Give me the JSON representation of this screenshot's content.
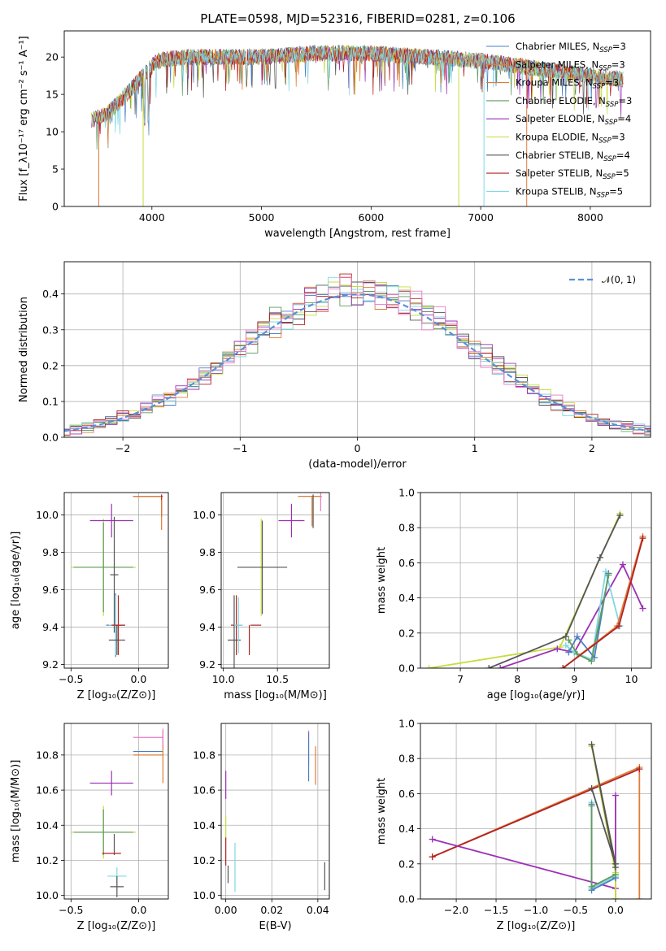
{
  "title": "PLATE=0598, MJD=52316, FIBERID=0281, z=0.106",
  "colors": {
    "c1": "#4c7fc0",
    "c2": "#e07b39",
    "c3": "#5f9b5f",
    "c4": "#9b30b5",
    "c5": "#c8dc3c",
    "c6": "#555555",
    "c7": "#b22222",
    "c8": "#7fd8e0",
    "pink": "#e879c8",
    "norm": "#5b8fd6"
  },
  "chart_data": [
    {
      "id": "spectrum",
      "type": "line",
      "xlabel": "wavelength [Angstrom, rest frame]",
      "ylabel": "Flux [f_λ10^-17 erg cm^-2 s^-1 A^-1]",
      "xlim": [
        3200,
        8550
      ],
      "ylim": [
        0,
        23.5
      ],
      "xticks": [
        "4000",
        "5000",
        "6000",
        "7000",
        "8000"
      ],
      "yticks": [
        "0",
        "5",
        "10",
        "15",
        "20"
      ],
      "legend_position": "top-right",
      "legend": [
        "Chabrier MILES, N_SSP=3",
        "Salpeter MILES, N_SSP=3",
        "Kroupa MILES, N_SSP=3",
        "Chabrier ELODIE, N_SSP=3",
        "Salpeter ELODIE, N_SSP=4",
        "Kroupa ELODIE, N_SSP=3",
        "Chabrier STELIB, N_SSP=4",
        "Salpeter STELIB, N_SSP=5",
        "Kroupa STELIB, N_SSP=5"
      ],
      "continuum": {
        "x": [
          3450,
          3600,
          3800,
          3950,
          4050,
          4300,
          4600,
          5000,
          5500,
          6000,
          6500,
          7000,
          7500,
          8000,
          8300
        ],
        "y": [
          11.5,
          12.5,
          15.5,
          18.0,
          19.5,
          20.0,
          20.0,
          20.0,
          20.5,
          20.5,
          20.0,
          19.5,
          18.5,
          17.5,
          17.0
        ]
      }
    },
    {
      "id": "residuals",
      "type": "histogram",
      "xlabel": "(data-model)/error",
      "ylabel": "Normed distribution",
      "xlim": [
        -2.5,
        2.5
      ],
      "ylim": [
        0,
        0.49
      ],
      "xticks": [
        "−2",
        "−1",
        "0",
        "1",
        "2"
      ],
      "yticks": [
        "0.0",
        "0.1",
        "0.2",
        "0.3",
        "0.4"
      ],
      "grid": true,
      "legend": [
        "𝒩(0, 1)"
      ],
      "legend_position": "top-right",
      "bin_width": 0.1
    },
    {
      "id": "age_vs_Z",
      "type": "scatter",
      "xlabel": "Z [log10(Z/Z⊙)]",
      "ylabel": "age [log10(age/yr)]",
      "xlim": [
        -0.55,
        0.22
      ],
      "ylim": [
        9.18,
        10.12
      ],
      "xticks": [
        "−0.5",
        "0.0"
      ],
      "yticks": [
        "9.2",
        "9.4",
        "9.6",
        "9.8",
        "10.0"
      ],
      "grid": true,
      "points": [
        {
          "x": -0.26,
          "y": 9.72,
          "xerr": 0.24,
          "yerr": 0.26,
          "color": "c5"
        },
        {
          "x": -0.26,
          "y": 9.72,
          "xerr": 0.22,
          "yerr": 0.24,
          "color": "c3"
        },
        {
          "x": -0.2,
          "y": 9.97,
          "xerr": 0.16,
          "yerr": 0.09,
          "color": "c4"
        },
        {
          "x": -0.18,
          "y": 9.68,
          "xerr": 0.03,
          "yerr": 0.31,
          "color": "c6"
        },
        {
          "x": -0.17,
          "y": 9.41,
          "xerr": 0.07,
          "yerr": 0.17,
          "color": "c1"
        },
        {
          "x": -0.17,
          "y": 9.41,
          "xerr": 0.05,
          "yerr": 0.16,
          "color": "c8"
        },
        {
          "x": -0.16,
          "y": 9.33,
          "xerr": 0.06,
          "yerr": 0.08,
          "color": "c6"
        },
        {
          "x": -0.15,
          "y": 9.41,
          "xerr": 0.05,
          "yerr": 0.16,
          "color": "c7"
        },
        {
          "x": 0.07,
          "y": 10.1,
          "xerr": 0.11,
          "yerr": 0.0,
          "color": "c7"
        },
        {
          "x": 0.07,
          "y": 10.1,
          "xerr": 0.11,
          "yerr": 0.0,
          "color": "c2"
        },
        {
          "x": 0.17,
          "y": 10.05,
          "xerr": 0.0,
          "yerr": 0.06,
          "color": "c7"
        },
        {
          "x": 0.17,
          "y": 10.0,
          "xerr": 0.0,
          "yerr": 0.08,
          "color": "c2"
        }
      ]
    },
    {
      "id": "age_vs_mass",
      "type": "scatter",
      "xlabel": "mass [log10(M/M⊙)]",
      "ylabel": "",
      "xlim": [
        9.98,
        10.98
      ],
      "ylim": [
        9.18,
        10.12
      ],
      "xticks": [
        "10.0",
        "10.5"
      ],
      "yticks": [
        "9.2",
        "9.4",
        "9.6",
        "9.8",
        "10.0"
      ],
      "grid": true,
      "points": [
        {
          "x": 10.35,
          "y": 9.72,
          "xerr": 0.0,
          "yerr": 0.26,
          "color": "c5"
        },
        {
          "x": 10.36,
          "y": 9.72,
          "xerr": 0.23,
          "yerr": 0.25,
          "color": "c6"
        },
        {
          "x": 10.12,
          "y": 9.41,
          "xerr": 0.05,
          "yerr": 0.16,
          "color": "c7"
        },
        {
          "x": 10.24,
          "y": 9.33,
          "xerr": 0.0,
          "yerr": 0.08,
          "color": "c7"
        },
        {
          "x": 10.3,
          "y": 9.41,
          "xerr": 0.05,
          "yerr": 0.0,
          "color": "c7"
        },
        {
          "x": 10.1,
          "y": 9.33,
          "xerr": 0.06,
          "yerr": 0.24,
          "color": "c6"
        },
        {
          "x": 10.14,
          "y": 9.41,
          "xerr": 0.04,
          "yerr": 0.15,
          "color": "c8"
        },
        {
          "x": 10.63,
          "y": 9.97,
          "xerr": 0.12,
          "yerr": 0.09,
          "color": "c4"
        },
        {
          "x": 10.8,
          "y": 10.1,
          "xerr": 0.11,
          "yerr": 0.0,
          "color": "c2"
        },
        {
          "x": 10.9,
          "y": 10.1,
          "xerr": 0.0,
          "yerr": 0.08,
          "color": "pink"
        },
        {
          "x": 10.83,
          "y": 10.02,
          "xerr": 0.0,
          "yerr": 0.09,
          "color": "c6"
        },
        {
          "x": 10.82,
          "y": 10.02,
          "xerr": 0.0,
          "yerr": 0.08,
          "color": "c2"
        }
      ]
    },
    {
      "id": "weight_vs_age",
      "type": "line",
      "xlabel": "age [log10(age/yr)]",
      "ylabel": "mass weight",
      "xlim": [
        6.3,
        10.35
      ],
      "ylim": [
        0,
        1
      ],
      "xticks": [
        "7",
        "8",
        "9",
        "10"
      ],
      "yticks": [
        "0.0",
        "0.2",
        "0.4",
        "0.6",
        "0.8",
        "1.0"
      ],
      "grid": true,
      "series": [
        {
          "color": "c5",
          "x": [
            6.45,
            8.75,
            9.8
          ],
          "y": [
            0.0,
            0.12,
            0.88
          ]
        },
        {
          "color": "c6",
          "x": [
            7.5,
            8.85,
            9.45,
            9.8
          ],
          "y": [
            0.0,
            0.18,
            0.63,
            0.87
          ]
        },
        {
          "color": "c4",
          "x": [
            7.7,
            8.7,
            9.0,
            9.85,
            10.2
          ],
          "y": [
            0.0,
            0.11,
            0.09,
            0.59,
            0.34
          ]
        },
        {
          "color": "c8",
          "x": [
            8.85,
            9.0,
            9.3,
            9.55,
            9.8
          ],
          "y": [
            0.13,
            0.09,
            0.05,
            0.55,
            0.24
          ]
        },
        {
          "color": "c1",
          "x": [
            8.9,
            9.05,
            9.35,
            9.6
          ],
          "y": [
            0.09,
            0.18,
            0.06,
            0.54
          ]
        },
        {
          "color": "c3",
          "x": [
            8.9,
            9.05,
            9.3,
            9.6
          ],
          "y": [
            0.16,
            0.08,
            0.04,
            0.53
          ]
        },
        {
          "color": "c2",
          "x": [
            8.8,
            9.75,
            10.2
          ],
          "y": [
            0.0,
            0.24,
            0.75
          ]
        },
        {
          "color": "c7",
          "x": [
            8.8,
            9.78,
            10.2
          ],
          "y": [
            0.0,
            0.24,
            0.74
          ]
        }
      ]
    },
    {
      "id": "mass_vs_Z",
      "type": "scatter",
      "xlabel": "Z [log10(Z/Z⊙)]",
      "ylabel": "mass [log10(M/M⊙)]",
      "xlim": [
        -0.55,
        0.22
      ],
      "ylim": [
        9.98,
        10.98
      ],
      "xticks": [
        "−0.5",
        "0.0"
      ],
      "yticks": [
        "10.0",
        "10.2",
        "10.4",
        "10.6",
        "10.8"
      ],
      "grid": true,
      "points": [
        {
          "x": -0.26,
          "y": 10.36,
          "xerr": 0.24,
          "yerr": 0.15,
          "color": "c5"
        },
        {
          "x": -0.26,
          "y": 10.36,
          "xerr": 0.22,
          "yerr": 0.13,
          "color": "c3"
        },
        {
          "x": -0.2,
          "y": 10.64,
          "xerr": 0.16,
          "yerr": 0.07,
          "color": "c4"
        },
        {
          "x": -0.18,
          "y": 10.29,
          "xerr": 0.0,
          "yerr": 0.06,
          "color": "c6"
        },
        {
          "x": -0.2,
          "y": 10.24,
          "xerr": 0.07,
          "yerr": 0.0,
          "color": "c7"
        },
        {
          "x": -0.16,
          "y": 10.11,
          "xerr": 0.07,
          "yerr": 0.05,
          "color": "c8"
        },
        {
          "x": -0.16,
          "y": 10.05,
          "xerr": 0.05,
          "yerr": 0.06,
          "color": "c6"
        },
        {
          "x": 0.07,
          "y": 10.9,
          "xerr": 0.11,
          "yerr": 0.0,
          "color": "pink"
        },
        {
          "x": 0.07,
          "y": 10.82,
          "xerr": 0.11,
          "yerr": 0.0,
          "color": "c1"
        },
        {
          "x": 0.07,
          "y": 10.8,
          "xerr": 0.11,
          "yerr": 0.0,
          "color": "c2"
        },
        {
          "x": 0.18,
          "y": 10.79,
          "xerr": 0.0,
          "yerr": 0.15,
          "color": "c2"
        },
        {
          "x": 0.18,
          "y": 10.9,
          "xerr": 0.0,
          "yerr": 0.05,
          "color": "pink"
        }
      ]
    },
    {
      "id": "mass_vs_ebv",
      "type": "scatter",
      "xlabel": "E(B-V)",
      "ylabel": "",
      "xlim": [
        -0.002,
        0.045
      ],
      "ylim": [
        9.98,
        10.98
      ],
      "xticks": [
        "0.00",
        "0.02",
        "0.04"
      ],
      "yticks": [
        "10.0",
        "10.2",
        "10.4",
        "10.6",
        "10.8"
      ],
      "grid": true,
      "points": [
        {
          "x": 0.0,
          "y": 10.63,
          "xerr": 0.0,
          "yerr": 0.08,
          "color": "c4"
        },
        {
          "x": 0.0,
          "y": 10.38,
          "xerr": 0.0,
          "yerr": 0.07,
          "color": "c5"
        },
        {
          "x": 0.0,
          "y": 10.25,
          "xerr": 0.0,
          "yerr": 0.08,
          "color": "c7"
        },
        {
          "x": 0.001,
          "y": 10.12,
          "xerr": 0.0,
          "yerr": 0.05,
          "color": "c6"
        },
        {
          "x": 0.004,
          "y": 10.16,
          "xerr": 0.0,
          "yerr": 0.14,
          "color": "c8"
        },
        {
          "x": 0.036,
          "y": 10.84,
          "xerr": 0.0,
          "yerr": 0.1,
          "color": "pink"
        },
        {
          "x": 0.036,
          "y": 10.79,
          "xerr": 0.0,
          "yerr": 0.14,
          "color": "c1"
        },
        {
          "x": 0.039,
          "y": 10.74,
          "xerr": 0.0,
          "yerr": 0.11,
          "color": "c2"
        },
        {
          "x": 0.043,
          "y": 10.11,
          "xerr": 0.0,
          "yerr": 0.08,
          "color": "c6"
        }
      ]
    },
    {
      "id": "weight_vs_Z",
      "type": "line",
      "xlabel": "Z [log10(Z/Z⊙)]",
      "ylabel": "mass weight",
      "xlim": [
        -2.45,
        0.45
      ],
      "ylim": [
        0,
        1
      ],
      "xticks": [
        "−2.0",
        "−1.5",
        "−1.0",
        "−0.5",
        "0.0"
      ],
      "yticks": [
        "0.0",
        "0.2",
        "0.4",
        "0.6",
        "0.8",
        "1.0"
      ],
      "grid": true,
      "series": [
        {
          "color": "c2",
          "x": [
            -2.3,
            0.3,
            0.3
          ],
          "y": [
            0.24,
            0.75,
            0.0
          ]
        },
        {
          "color": "c7",
          "x": [
            -2.3,
            0.3
          ],
          "y": [
            0.24,
            0.74
          ]
        },
        {
          "color": "c4",
          "x": [
            -2.3,
            0.0,
            0.0,
            0.0
          ],
          "y": [
            0.34,
            0.06,
            0.59,
            0.0
          ]
        },
        {
          "color": "c5",
          "x": [
            -0.3,
            0.0,
            0.0
          ],
          "y": [
            0.87,
            0.15,
            0.0
          ]
        },
        {
          "color": "c6",
          "x": [
            -0.3,
            0.0,
            -0.3,
            0.0
          ],
          "y": [
            0.63,
            0.2,
            0.88,
            0.18
          ]
        },
        {
          "color": "c8",
          "x": [
            -0.3,
            -0.3,
            0.0
          ],
          "y": [
            0.55,
            0.06,
            0.13
          ]
        },
        {
          "color": "c1",
          "x": [
            -0.3,
            -0.3,
            0.0
          ],
          "y": [
            0.54,
            0.05,
            0.12
          ]
        },
        {
          "color": "c3",
          "x": [
            -0.3,
            -0.3,
            0.0
          ],
          "y": [
            0.53,
            0.07,
            0.14
          ]
        }
      ]
    }
  ]
}
